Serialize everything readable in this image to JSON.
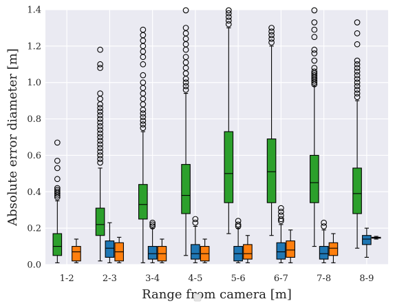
{
  "chart_data": {
    "type": "box",
    "xlabel": "Range from camera [m]",
    "ylabel": "Absolute error diameter [m]",
    "ylim": [
      0,
      1.4
    ],
    "yticks": [
      0.0,
      0.2,
      0.4,
      0.6,
      0.8,
      1.0,
      1.2,
      1.4
    ],
    "ytick_labels": [
      "0.0",
      "0.2",
      "0.4",
      "0.6",
      "0.8",
      "1.0",
      "1.2",
      "1.4"
    ],
    "categories": [
      "1-2",
      "2-3",
      "3-4",
      "4-5",
      "5-6",
      "6-7",
      "7-8",
      "8-9"
    ],
    "grid": true,
    "background": "#eaeaf2",
    "series": [
      {
        "color": "#2ca02c",
        "boxes": [
          {
            "whislo": 0.01,
            "q1": 0.05,
            "med": 0.1,
            "q3": 0.17,
            "whishi": 0.35,
            "fliers": [
              0.37,
              0.38,
              0.39,
              0.4,
              0.41,
              0.42,
              0.47,
              0.53,
              0.57,
              0.67
            ]
          },
          {
            "whislo": 0.02,
            "q1": 0.16,
            "med": 0.22,
            "q3": 0.31,
            "whishi": 0.53,
            "fliers": [
              0.56,
              0.58,
              0.6,
              0.62,
              0.64,
              0.66,
              0.68,
              0.7,
              0.72,
              0.74,
              0.76,
              0.78,
              0.8,
              0.82,
              0.84,
              0.86,
              0.88,
              0.91,
              0.94,
              1.08,
              1.1,
              1.18
            ]
          },
          {
            "whislo": 0.01,
            "q1": 0.25,
            "med": 0.33,
            "q3": 0.44,
            "whishi": 0.73,
            "fliers": [
              0.75,
              0.77,
              0.79,
              0.81,
              0.83,
              0.85,
              0.88,
              0.91,
              0.94,
              0.97,
              1.0,
              1.04,
              1.1,
              1.14,
              1.17,
              1.2,
              1.23,
              1.26,
              1.29
            ]
          },
          {
            "whislo": 0.05,
            "q1": 0.28,
            "med": 0.38,
            "q3": 0.55,
            "whishi": 0.94,
            "fliers": [
              0.96,
              0.98,
              1.0,
              1.02,
              1.05,
              1.08,
              1.11,
              1.14,
              1.18,
              1.21,
              1.24,
              1.27,
              1.3,
              1.4
            ]
          },
          {
            "whislo": 0.17,
            "q1": 0.34,
            "med": 0.5,
            "q3": 0.73,
            "whishi": 1.3,
            "fliers": [
              1.32,
              1.34,
              1.36,
              1.38,
              1.4
            ]
          },
          {
            "whislo": 0.16,
            "q1": 0.34,
            "med": 0.51,
            "q3": 0.69,
            "whishi": 1.2,
            "fliers": [
              1.22,
              1.24,
              1.26,
              1.28,
              1.3
            ]
          },
          {
            "whislo": 0.1,
            "q1": 0.34,
            "med": 0.45,
            "q3": 0.6,
            "whishi": 0.98,
            "fliers": [
              0.99,
              1.0,
              1.01,
              1.02,
              1.03,
              1.04,
              1.05,
              1.06,
              1.08,
              1.12,
              1.16,
              1.18,
              1.25,
              1.29,
              1.33,
              1.4
            ]
          },
          {
            "whislo": 0.09,
            "q1": 0.28,
            "med": 0.39,
            "q3": 0.53,
            "whishi": 0.9,
            "fliers": [
              0.92,
              0.94,
              0.96,
              0.98,
              1.0,
              1.02,
              1.04,
              1.06,
              1.08,
              1.1,
              1.12,
              1.21,
              1.27,
              1.33
            ]
          }
        ]
      },
      {
        "color": "#1f77b4",
        "boxes": [
          null,
          {
            "whislo": 0.01,
            "q1": 0.04,
            "med": 0.09,
            "q3": 0.13,
            "whishi": 0.23,
            "fliers": []
          },
          {
            "whislo": 0.01,
            "q1": 0.03,
            "med": 0.06,
            "q3": 0.1,
            "whishi": 0.2,
            "fliers": [
              0.21,
              0.22,
              0.23
            ]
          },
          {
            "whislo": 0.01,
            "q1": 0.03,
            "med": 0.06,
            "q3": 0.11,
            "whishi": 0.21,
            "fliers": [
              0.23,
              0.25
            ]
          },
          {
            "whislo": 0.01,
            "q1": 0.02,
            "med": 0.06,
            "q3": 0.1,
            "whishi": 0.2,
            "fliers": [
              0.21,
              0.22,
              0.24
            ]
          },
          {
            "whislo": 0.01,
            "q1": 0.03,
            "med": 0.07,
            "q3": 0.12,
            "whishi": 0.22,
            "fliers": [
              0.24,
              0.25,
              0.27,
              0.29,
              0.31
            ]
          },
          {
            "whislo": 0.01,
            "q1": 0.03,
            "med": 0.06,
            "q3": 0.1,
            "whishi": 0.19,
            "fliers": [
              0.21,
              0.23
            ]
          },
          {
            "whislo": 0.04,
            "q1": 0.11,
            "med": 0.14,
            "q3": 0.16,
            "whishi": 0.2,
            "fliers": []
          }
        ]
      },
      {
        "color": "#ff7f0e",
        "boxes": [
          {
            "whislo": 0.01,
            "q1": 0.02,
            "med": 0.07,
            "q3": 0.1,
            "whishi": 0.14,
            "fliers": []
          },
          {
            "whislo": 0.01,
            "q1": 0.02,
            "med": 0.07,
            "q3": 0.12,
            "whishi": 0.15,
            "fliers": []
          },
          {
            "whislo": 0.01,
            "q1": 0.02,
            "med": 0.06,
            "q3": 0.1,
            "whishi": 0.14,
            "fliers": []
          },
          {
            "whislo": 0.01,
            "q1": 0.02,
            "med": 0.06,
            "q3": 0.1,
            "whishi": 0.14,
            "fliers": []
          },
          {
            "whislo": 0.01,
            "q1": 0.03,
            "med": 0.06,
            "q3": 0.11,
            "whishi": 0.16,
            "fliers": []
          },
          {
            "whislo": 0.01,
            "q1": 0.04,
            "med": 0.08,
            "q3": 0.13,
            "whishi": 0.19,
            "fliers": []
          },
          {
            "whislo": 0.01,
            "q1": 0.05,
            "med": 0.09,
            "q3": 0.12,
            "whishi": 0.17,
            "fliers": []
          },
          {
            "whislo": 0.14,
            "q1": 0.145,
            "med": 0.147,
            "q3": 0.15,
            "whishi": 0.155,
            "fliers": []
          }
        ]
      }
    ]
  }
}
